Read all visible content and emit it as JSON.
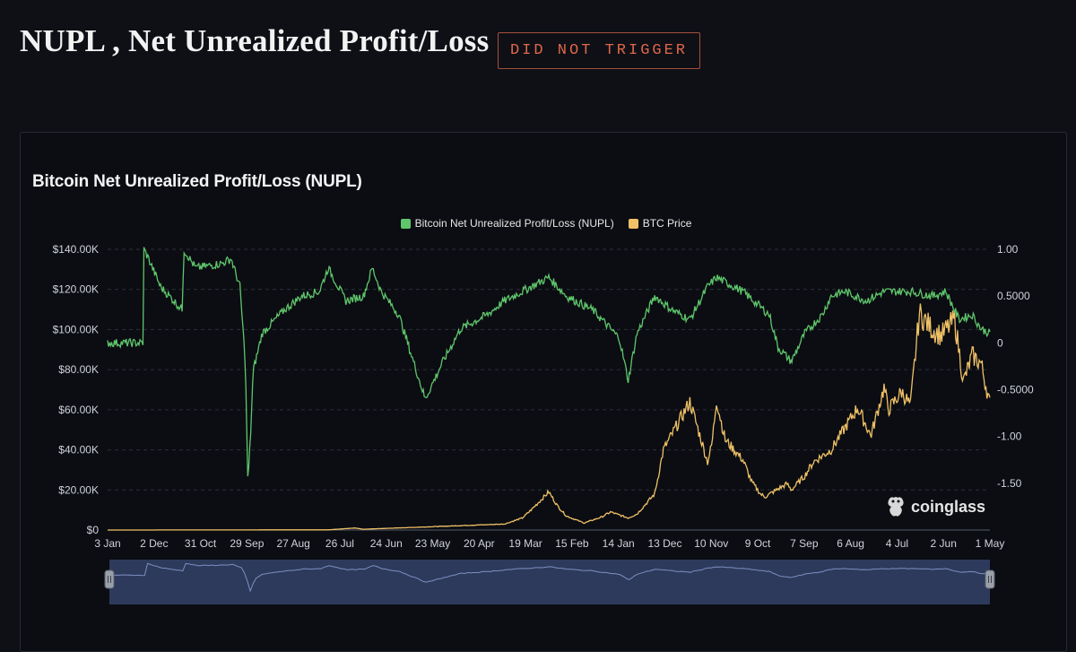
{
  "header": {
    "title": "NUPL , Net Unrealized Profit/Loss",
    "badge": "DID NOT TRIGGER"
  },
  "panel": {
    "title": "Bitcoin Net Unrealized Profit/Loss (NUPL)",
    "logo_text": "coinglass",
    "logo_icon": "coinglass-frog-icon"
  },
  "colors": {
    "nupl": "#5fc66b",
    "price": "#f0c166",
    "grid": "#2c313b",
    "navigator_fill": "#2e3a5c",
    "navigator_line": "#7c8fc0"
  },
  "chart_data": {
    "type": "line",
    "title": "Bitcoin Net Unrealized Profit/Loss (NUPL)",
    "legend": [
      "Bitcoin Net Unrealized Profit/Loss (NUPL)",
      "BTC Price"
    ],
    "legend_position": "top-center",
    "x_ticks": [
      "3 Jan",
      "2 Dec",
      "31 Oct",
      "29 Sep",
      "27 Aug",
      "26 Jul",
      "24 Jun",
      "23 May",
      "20 Apr",
      "19 Mar",
      "15 Feb",
      "14 Jan",
      "13 Dec",
      "10 Nov",
      "9 Oct",
      "7 Sep",
      "6 Aug",
      "4 Jul",
      "2 Jun",
      "1 May"
    ],
    "y_left_ticks": [
      "$140.00K",
      "$120.00K",
      "$100.00K",
      "$80.00K",
      "$60.00K",
      "$40.00K",
      "$20.00K",
      "$0"
    ],
    "y_right_ticks": [
      "1.00",
      "0.5000",
      "0",
      "-0.5000",
      "-1.00",
      "-1.50"
    ],
    "y_left_range": [
      0,
      140000
    ],
    "y_right_range": [
      -2.0,
      1.0
    ],
    "grid": true,
    "series": [
      {
        "name": "Bitcoin Net Unrealized Profit/Loss (NUPL)",
        "axis": "right",
        "x": [
          0,
          0.04,
          0.041,
          0.045,
          0.06,
          0.085,
          0.086,
          0.1,
          0.13,
          0.14,
          0.15,
          0.156,
          0.159,
          0.162,
          0.165,
          0.175,
          0.2,
          0.22,
          0.24,
          0.25,
          0.27,
          0.29,
          0.3,
          0.31,
          0.33,
          0.34,
          0.345,
          0.36,
          0.38,
          0.4,
          0.43,
          0.45,
          0.5,
          0.52,
          0.55,
          0.56,
          0.58,
          0.59,
          0.6,
          0.62,
          0.64,
          0.66,
          0.68,
          0.69,
          0.7,
          0.72,
          0.75,
          0.76,
          0.775,
          0.79,
          0.8,
          0.81,
          0.82,
          0.835,
          0.86,
          0.88,
          0.91,
          0.935,
          0.95,
          0.96,
          0.965,
          0.98,
          0.99,
          1.0
        ],
        "y": [
          0,
          0,
          1.0,
          0.93,
          0.6,
          0.35,
          1.0,
          0.8,
          0.85,
          0.9,
          0.6,
          -0.2,
          -1.5,
          -1.0,
          -0.3,
          0.1,
          0.35,
          0.5,
          0.55,
          0.8,
          0.45,
          0.5,
          0.8,
          0.55,
          0.3,
          0.0,
          -0.15,
          -0.6,
          -0.2,
          0.15,
          0.3,
          0.45,
          0.7,
          0.5,
          0.35,
          0.25,
          0.05,
          -0.4,
          0.1,
          0.5,
          0.35,
          0.25,
          0.6,
          0.7,
          0.65,
          0.55,
          0.3,
          -0.05,
          -0.2,
          0.1,
          0.2,
          0.3,
          0.5,
          0.55,
          0.45,
          0.55,
          0.55,
          0.5,
          0.55,
          0.35,
          0.25,
          0.3,
          0.15,
          0.1
        ]
      },
      {
        "name": "BTC Price",
        "axis": "left",
        "x": [
          0,
          0.25,
          0.28,
          0.29,
          0.45,
          0.47,
          0.48,
          0.5,
          0.51,
          0.52,
          0.54,
          0.56,
          0.57,
          0.59,
          0.6,
          0.62,
          0.63,
          0.66,
          0.68,
          0.685,
          0.69,
          0.7,
          0.72,
          0.73,
          0.74,
          0.745,
          0.76,
          0.77,
          0.775,
          0.79,
          0.8,
          0.82,
          0.85,
          0.86,
          0.865,
          0.88,
          0.885,
          0.9,
          0.91,
          0.92,
          0.935,
          0.945,
          0.96,
          0.97,
          0.98,
          0.99,
          1.0
        ],
        "y": [
          0,
          100,
          1000,
          400,
          3000,
          6000,
          10000,
          19000,
          12000,
          7000,
          3500,
          6500,
          9000,
          6000,
          8000,
          18000,
          40000,
          64000,
          34000,
          43000,
          65000,
          45000,
          35000,
          24000,
          18000,
          16500,
          20500,
          23000,
          20000,
          27000,
          34000,
          40000,
          61000,
          52000,
          47000,
          71000,
          60000,
          69000,
          62000,
          108000,
          100000,
          97000,
          105000,
          74000,
          87000,
          83000,
          63000
        ]
      }
    ]
  }
}
